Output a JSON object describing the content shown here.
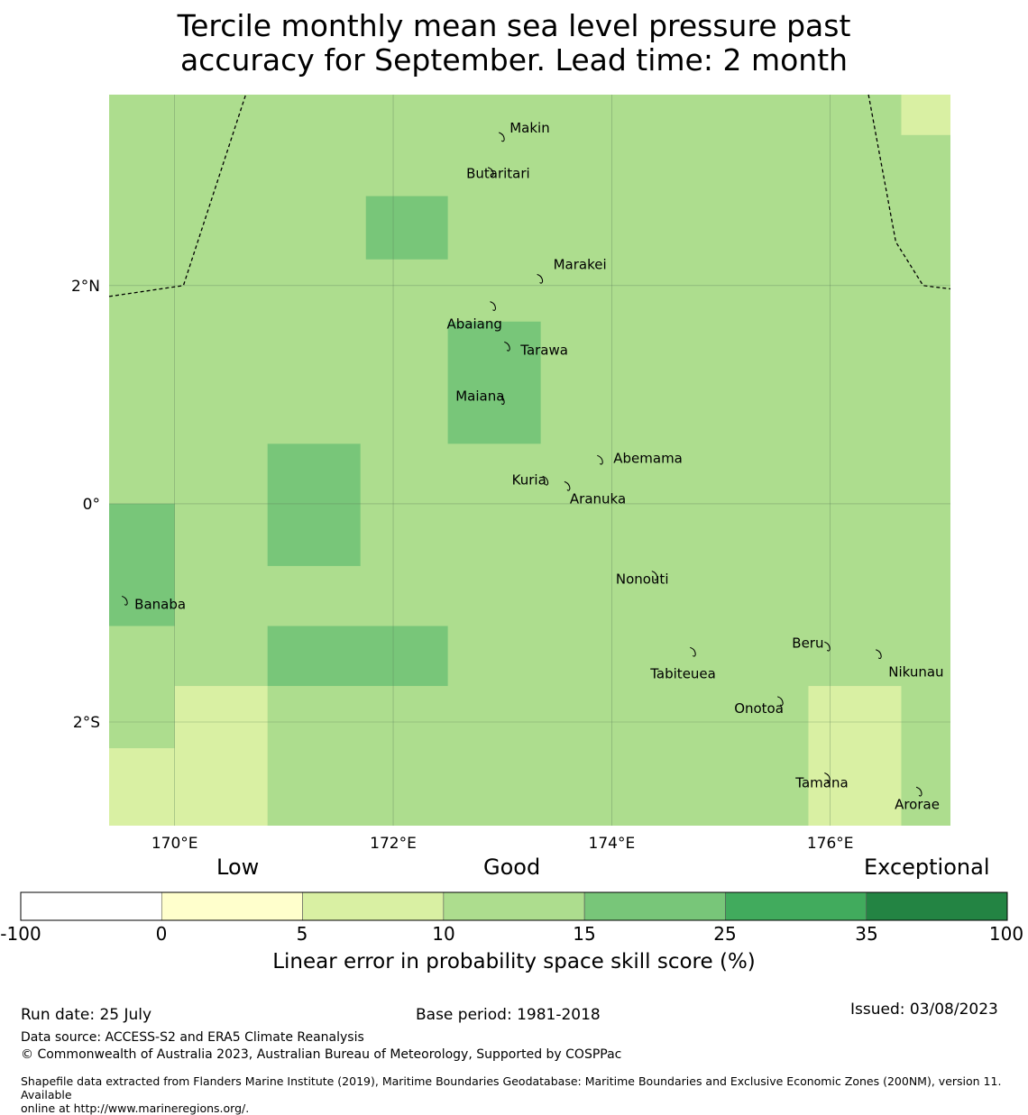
{
  "title_line1": "Tercile monthly mean sea level pressure past",
  "title_line2": "accuracy for September. Lead time: 2 month",
  "map": {
    "lon_range": [
      169.4,
      177.1
    ],
    "lat_range": [
      -2.95,
      3.75
    ],
    "x_ticks": [
      {
        "lon": 170,
        "label": "170°E"
      },
      {
        "lon": 172,
        "label": "172°E"
      },
      {
        "lon": 174,
        "label": "174°E"
      },
      {
        "lon": 176,
        "label": "176°E"
      }
    ],
    "y_ticks": [
      {
        "lat": 2,
        "label": "2°N"
      },
      {
        "lat": 0,
        "label": "0°"
      },
      {
        "lat": -2,
        "label": "2°S"
      }
    ],
    "background_category": "10-15",
    "cells": [
      {
        "lon": [
          176.65,
          177.1
        ],
        "lat": [
          3.38,
          3.75
        ],
        "category": "5-10"
      },
      {
        "lon": [
          171.75,
          172.5
        ],
        "lat": [
          2.24,
          2.82
        ],
        "category": "15-25"
      },
      {
        "lon": [
          172.5,
          173.35
        ],
        "lat": [
          0.55,
          1.67
        ],
        "category": "15-25"
      },
      {
        "lon": [
          170.85,
          171.7
        ],
        "lat": [
          -0.57,
          0.55
        ],
        "category": "15-25"
      },
      {
        "lon": [
          169.4,
          170.0
        ],
        "lat": [
          -1.12,
          0.0
        ],
        "category": "15-25"
      },
      {
        "lon": [
          170.85,
          172.5
        ],
        "lat": [
          -1.67,
          -1.12
        ],
        "category": "15-25"
      },
      {
        "lon": [
          170.0,
          170.85
        ],
        "lat": [
          -2.95,
          -1.67
        ],
        "category": "5-10"
      },
      {
        "lon": [
          169.4,
          170.0
        ],
        "lat": [
          -2.95,
          -2.24
        ],
        "category": "5-10"
      },
      {
        "lon": [
          175.8,
          176.65
        ],
        "lat": [
          -2.95,
          -1.67
        ],
        "category": "5-10"
      }
    ],
    "islands": [
      {
        "name": "Makin",
        "lon": 173.0,
        "lat": 3.37
      },
      {
        "name": "Butaritari",
        "lon": 172.9,
        "lat": 3.05
      },
      {
        "name": "Marakei",
        "lon": 173.35,
        "lat": 2.07
      },
      {
        "name": "Abaiang",
        "lon": 172.92,
        "lat": 1.82
      },
      {
        "name": "Tarawa",
        "lon": 173.05,
        "lat": 1.45
      },
      {
        "name": "Maiana",
        "lon": 173.0,
        "lat": 0.96
      },
      {
        "name": "Abemama",
        "lon": 173.9,
        "lat": 0.41
      },
      {
        "name": "Kuria",
        "lon": 173.4,
        "lat": 0.22
      },
      {
        "name": "Aranuka",
        "lon": 173.6,
        "lat": 0.17
      },
      {
        "name": "Nonouti",
        "lon": 174.4,
        "lat": -0.65
      },
      {
        "name": "Banaba",
        "lon": 169.55,
        "lat": -0.88
      },
      {
        "name": "Tabiteuea",
        "lon": 174.75,
        "lat": -1.35
      },
      {
        "name": "Beru",
        "lon": 175.98,
        "lat": -1.3
      },
      {
        "name": "Nikunau",
        "lon": 176.45,
        "lat": -1.37
      },
      {
        "name": "Onotoa",
        "lon": 175.55,
        "lat": -1.8
      },
      {
        "name": "Tamana",
        "lon": 175.98,
        "lat": -2.5
      },
      {
        "name": "Arorae",
        "lon": 176.82,
        "lat": -2.63
      }
    ],
    "eez_boundary_west": [
      [
        169.4,
        1.9
      ],
      [
        170.08,
        2.0
      ],
      [
        170.65,
        3.75
      ]
    ],
    "eez_boundary_east": [
      [
        176.35,
        3.75
      ],
      [
        176.6,
        2.4
      ],
      [
        176.85,
        2.0
      ],
      [
        177.1,
        1.97
      ]
    ]
  },
  "colorbar": {
    "group_labels": {
      "low": "Low",
      "good": "Good",
      "exceptional": "Exceptional"
    },
    "bins": [
      {
        "range": "-100-0",
        "color": "#ffffff"
      },
      {
        "range": "0-5",
        "color": "#ffffcc"
      },
      {
        "range": "5-10",
        "color": "#d9f0a3"
      },
      {
        "range": "10-15",
        "color": "#addd8e"
      },
      {
        "range": "15-25",
        "color": "#78c679"
      },
      {
        "range": "25-35",
        "color": "#41ab5d"
      },
      {
        "range": "35-100",
        "color": "#238443"
      }
    ],
    "tick_labels": [
      "-100",
      "0",
      "5",
      "10",
      "15",
      "25",
      "35",
      "100"
    ],
    "title": "Linear error in probability space skill score (%)"
  },
  "footer": {
    "run_date": "Run date: 25 July",
    "base_period": "Base period: 1981-2018",
    "issued": "Issued: 03/08/2023",
    "data_source": "Data source: ACCESS-S2 and ERA5 Climate Reanalysis",
    "copyright": "© Commonwealth of Australia 2023, Australian Bureau of Meteorology, Supported by COSPPac",
    "shapefile_line1": "Shapefile data extracted from Flanders Marine Institute (2019), Maritime Boundaries Geodatabase: Maritime Boundaries and Exclusive Economic Zones (200NM), version 11. Available",
    "shapefile_line2": "online at http://www.marineregions.org/."
  }
}
